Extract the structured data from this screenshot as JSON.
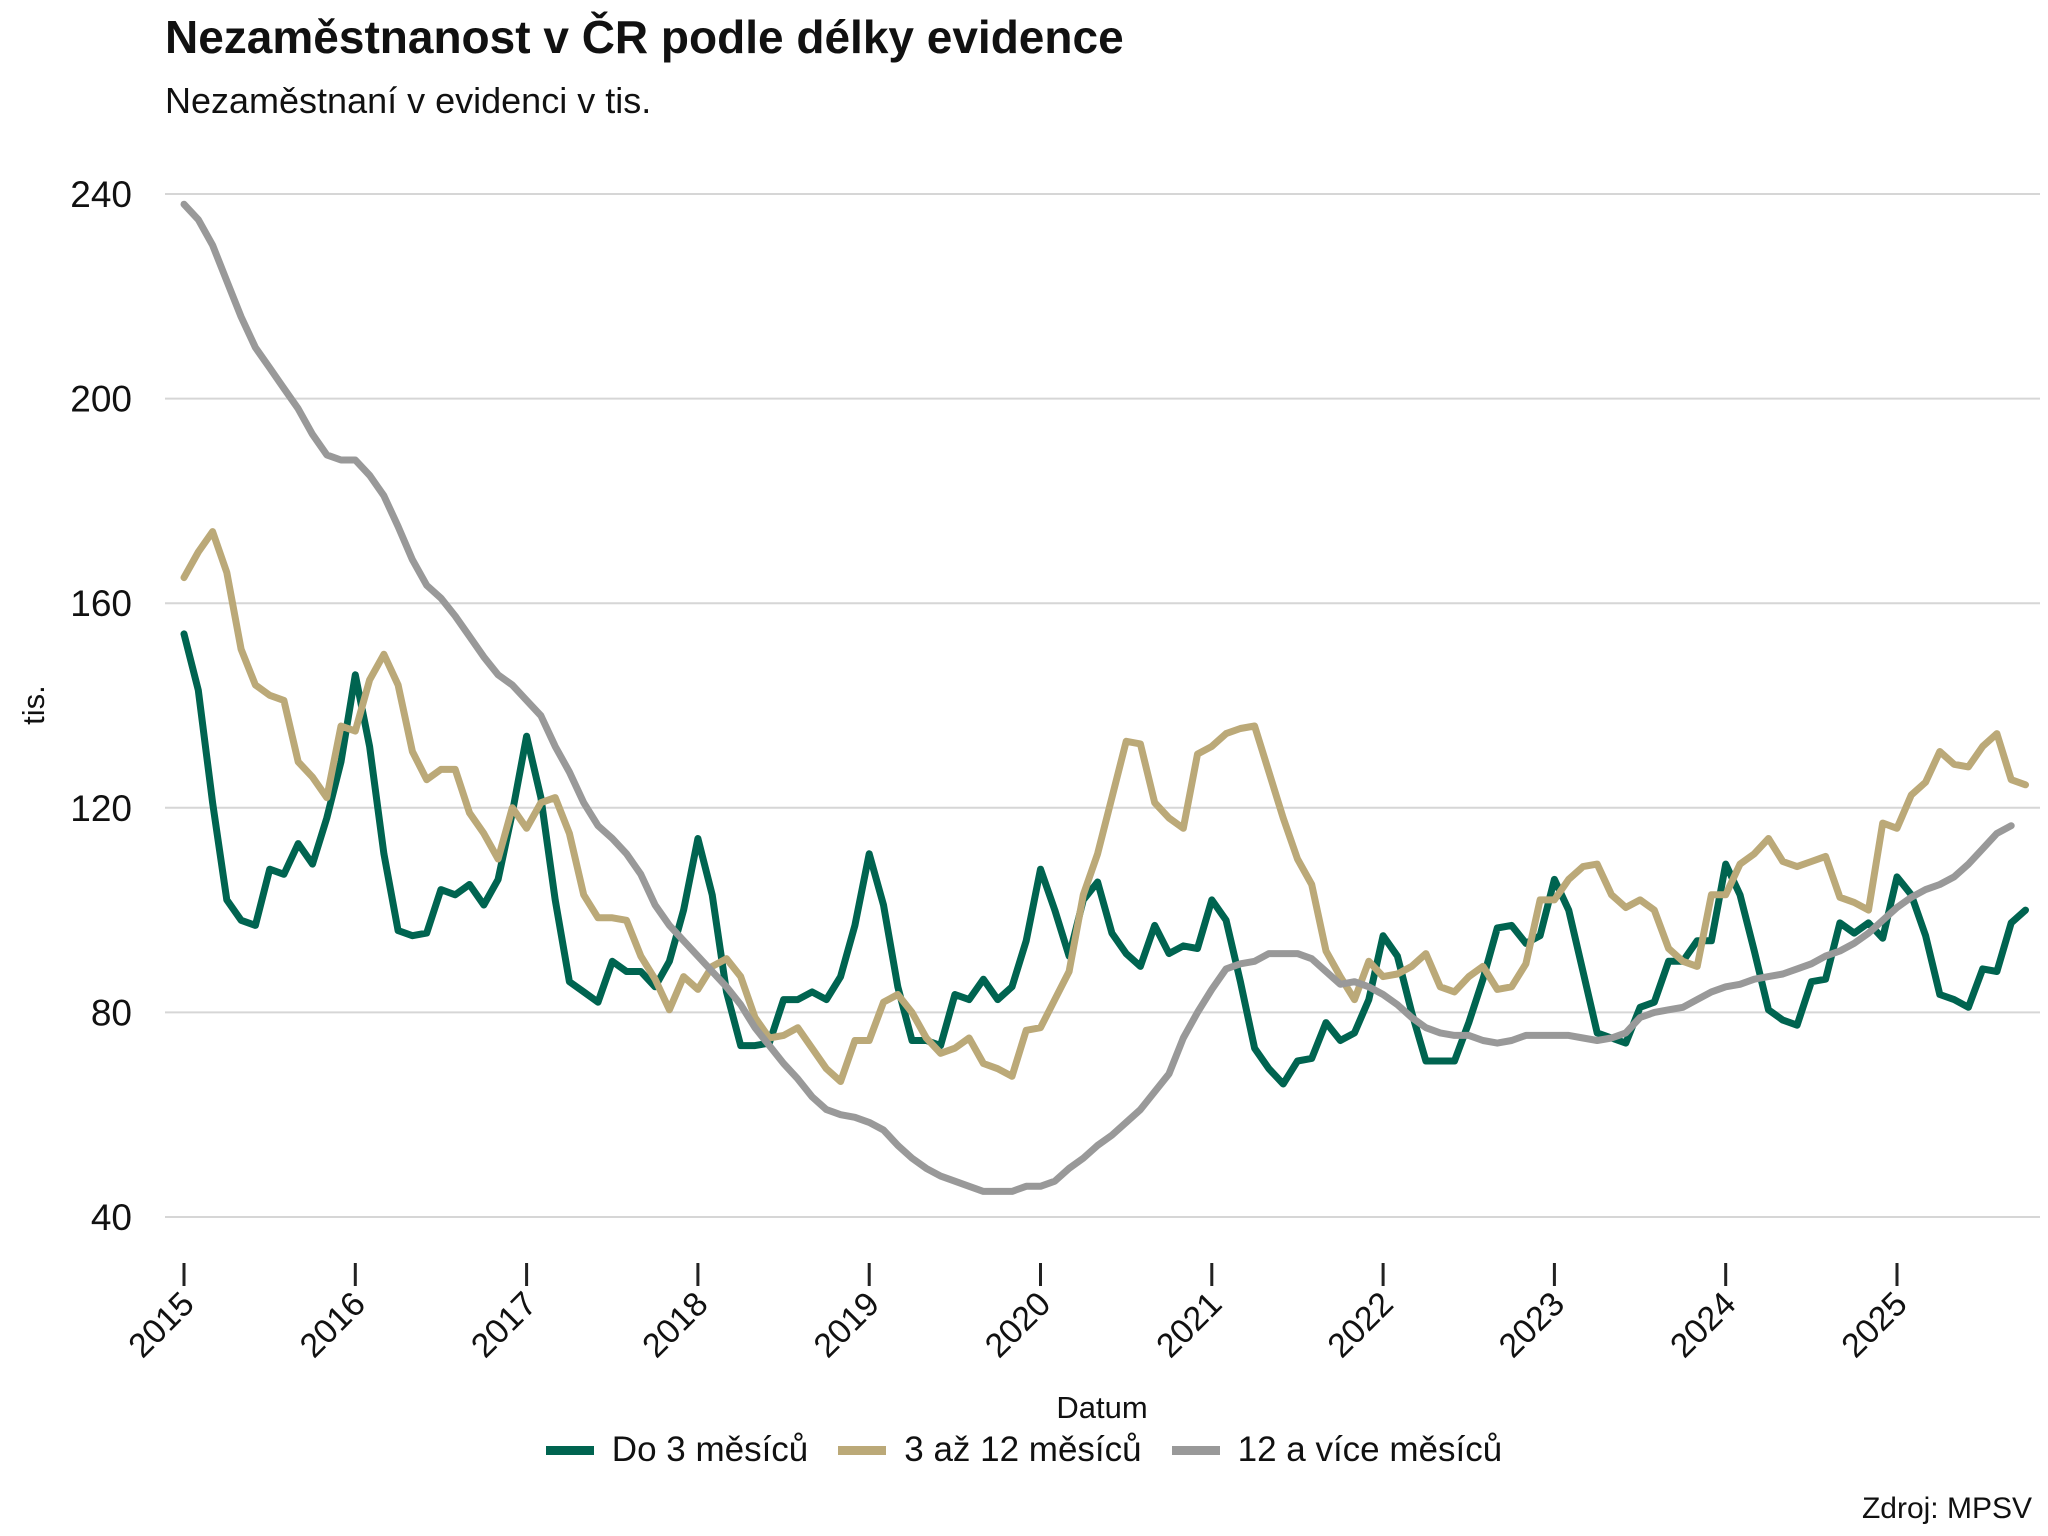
{
  "chart_data": {
    "type": "line",
    "title": "Nezaměstnanost v ČR podle délky evidence",
    "subtitle": "Nezaměstnaní v evidenci v tis.",
    "xlabel": "Datum",
    "ylabel": "tis.",
    "source": "Zdroj: MPSV",
    "ylim": [
      40,
      240
    ],
    "yticks": [
      "40",
      "80",
      "120",
      "160",
      "200",
      "240"
    ],
    "xticks": [
      "2015",
      "2016",
      "2017",
      "2018",
      "2019",
      "2020",
      "2021",
      "2022",
      "2023",
      "2024",
      "2025"
    ],
    "x_range": [
      "2015-01",
      "2025-10"
    ],
    "grid": true,
    "legend_position": "bottom",
    "series": [
      {
        "name": "Do 3 měsíců",
        "color": "#006450",
        "values": [
          154,
          143,
          121,
          102,
          98,
          97,
          108,
          107,
          113,
          109,
          118,
          129,
          146,
          132,
          111,
          96,
          95,
          95.5,
          104,
          103,
          105,
          101,
          106,
          119,
          134,
          122,
          102,
          86,
          84,
          82,
          90,
          88,
          88,
          85,
          90,
          100,
          114,
          103,
          84,
          73.5,
          73.5,
          74,
          82.5,
          82.5,
          84,
          82.5,
          87,
          97,
          111,
          101,
          85,
          74.5,
          74.5,
          73.5,
          83.5,
          82.5,
          86.5,
          82.5,
          85,
          94,
          108,
          100,
          91,
          102,
          105.5,
          95.5,
          91.5,
          89,
          97,
          91.5,
          93,
          92.5,
          102,
          98,
          86,
          73,
          69,
          66,
          70.5,
          71,
          78,
          74.5,
          76,
          82.5,
          95,
          91,
          80,
          70.5,
          70.5,
          70.5,
          78,
          86.5,
          96.5,
          97,
          93.5,
          95,
          106,
          100,
          88,
          76,
          75,
          74,
          81,
          82,
          90,
          90,
          94,
          94,
          109,
          103,
          92,
          80.5,
          78.5,
          77.5,
          86,
          86.5,
          97.5,
          95.5,
          97.5,
          94.5,
          106.5,
          103,
          95,
          83.5,
          82.5,
          81,
          88.5,
          88,
          97.5,
          100
        ]
      },
      {
        "name": "3 až 12 měsíců",
        "color": "#BBA978",
        "values": [
          165,
          170,
          174,
          166,
          151,
          144,
          142,
          141,
          129,
          126,
          122,
          136,
          135,
          145,
          150,
          144,
          131,
          125.5,
          127.5,
          127.5,
          119,
          115,
          110,
          120,
          116,
          121,
          122,
          115,
          103,
          98.5,
          98.5,
          98,
          91,
          86.5,
          80.5,
          87,
          84.5,
          89,
          90.5,
          87,
          79,
          75,
          75.5,
          77,
          73,
          69,
          66.5,
          74.5,
          74.5,
          82,
          83.5,
          80,
          75,
          72,
          73,
          75,
          70,
          69,
          67.5,
          76.5,
          77,
          82.5,
          88,
          103,
          111,
          122,
          133,
          132.5,
          121,
          118,
          116,
          130.5,
          132,
          134.5,
          135.5,
          136,
          127,
          118,
          110,
          105,
          92,
          87,
          82.5,
          90,
          87,
          87.5,
          89,
          91.5,
          85,
          84,
          87,
          89,
          84.5,
          85,
          89.5,
          102,
          102,
          106,
          108.5,
          109,
          103,
          100.5,
          102,
          100,
          92.5,
          90,
          89,
          103,
          103,
          109,
          111,
          114,
          109.5,
          108.5,
          109.5,
          110.5,
          102.5,
          101.5,
          100,
          117,
          116,
          122.5,
          125,
          131,
          128.5,
          128,
          132,
          134.5,
          125.5,
          124.5
        ]
      },
      {
        "name": "12 a více měsíců",
        "color": "#999999",
        "values": [
          238,
          235,
          230,
          223,
          216,
          210,
          206,
          202,
          198,
          193,
          189,
          188,
          188,
          185,
          181,
          175,
          168.5,
          163.5,
          161,
          157.5,
          153.5,
          149.5,
          146,
          144,
          141,
          138,
          132,
          127,
          121,
          116.5,
          114,
          111,
          107,
          101,
          97,
          94,
          91,
          88,
          85,
          81.5,
          77,
          73.5,
          70,
          67,
          63.5,
          61,
          60,
          59.5,
          58.5,
          57,
          54,
          51.5,
          49.5,
          48,
          47,
          46,
          45,
          45,
          45,
          46,
          46,
          47,
          49.5,
          51.5,
          54,
          56,
          58.5,
          61,
          64.5,
          68,
          75,
          80,
          84.5,
          88.5,
          89.5,
          90,
          91.5,
          91.5,
          91.5,
          90.5,
          88,
          85.5,
          86,
          85,
          83.5,
          81.5,
          79,
          77,
          76,
          75.5,
          75.5,
          74.5,
          74,
          74.5,
          75.5,
          75.5,
          75.5,
          75.5,
          75,
          74.5,
          75,
          76,
          79,
          80,
          80.5,
          81,
          82.5,
          84,
          85,
          85.5,
          86.5,
          87,
          87.5,
          88.5,
          89.5,
          91,
          92,
          93.5,
          95.5,
          98,
          100.5,
          102.5,
          104,
          105,
          106.5,
          109,
          112,
          115,
          116.5
        ]
      }
    ]
  }
}
